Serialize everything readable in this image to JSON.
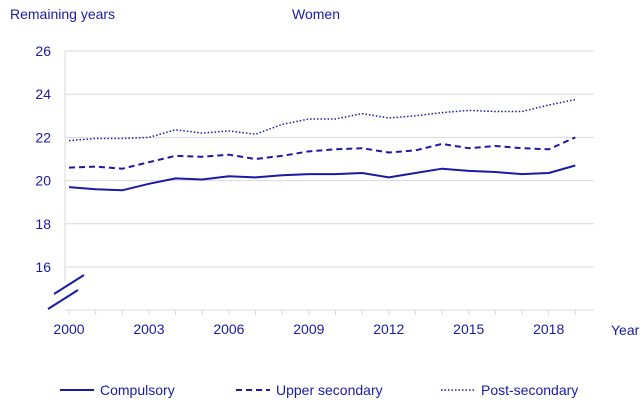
{
  "chart_data": {
    "type": "line",
    "title": "Women",
    "ylabel": "Remaining years",
    "xlabel": "Year",
    "ylim": [
      14.5,
      26
    ],
    "y_ticks": [
      16,
      18,
      20,
      22,
      24,
      26
    ],
    "x_ticks": [
      2000,
      2003,
      2006,
      2009,
      2012,
      2015,
      2018
    ],
    "x": [
      2000,
      2001,
      2002,
      2003,
      2004,
      2005,
      2006,
      2007,
      2008,
      2009,
      2010,
      2011,
      2012,
      2013,
      2014,
      2015,
      2016,
      2017,
      2018,
      2019
    ],
    "axis_break": true,
    "grid": true,
    "legend_position": "bottom",
    "series": [
      {
        "name": "Compulsory",
        "style": "solid",
        "values": [
          19.7,
          19.6,
          19.55,
          19.85,
          20.1,
          20.05,
          20.2,
          20.15,
          20.25,
          20.3,
          20.3,
          20.35,
          20.15,
          20.35,
          20.55,
          20.45,
          20.4,
          20.3,
          20.35,
          20.7
        ]
      },
      {
        "name": "Upper secondary",
        "style": "dashed",
        "values": [
          20.6,
          20.65,
          20.55,
          20.85,
          21.15,
          21.1,
          21.2,
          21.0,
          21.15,
          21.35,
          21.45,
          21.5,
          21.3,
          21.4,
          21.7,
          21.5,
          21.6,
          21.5,
          21.45,
          22.0
        ]
      },
      {
        "name": "Post-secondary",
        "style": "dotted",
        "values": [
          21.85,
          21.95,
          21.95,
          22.0,
          22.35,
          22.2,
          22.3,
          22.15,
          22.6,
          22.85,
          22.85,
          23.1,
          22.9,
          23.0,
          23.15,
          23.25,
          23.2,
          23.2,
          23.5,
          23.75
        ]
      }
    ],
    "colors": {
      "line": "#1a1aa6",
      "grid": "#d9d9d9",
      "text": "#1a1aa6"
    }
  }
}
